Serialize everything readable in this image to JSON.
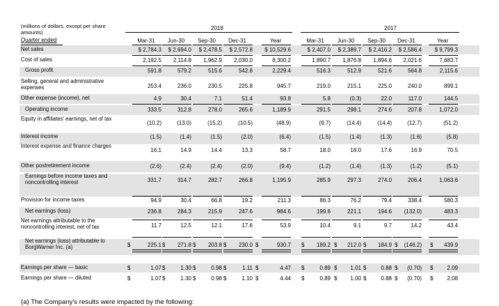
{
  "header": {
    "units_note": "(millions of dollars, except per share amounts)",
    "year_2018": "2018",
    "year_2017": "2017",
    "quarter_ended": "Quarter ended",
    "columns": [
      "Mar-31",
      "Jun-30",
      "Sep-30",
      "Dec-31",
      "Year",
      "Mar-31",
      "Jun-30",
      "Sep-30",
      "Dec-31",
      "Year"
    ]
  },
  "rows": [
    {
      "label": "Net sales",
      "values": [
        "$ 2,784.3",
        "$ 2,694.0",
        "$ 2,478.5",
        "$ 2,572.8",
        "$ 10,529.6",
        "$ 2,407.0",
        "$ 2,389.7",
        "$ 2,416.2",
        "$ 2,586.4",
        "$ 9,799.3"
      ]
    },
    {
      "label": "Cost of sales",
      "values": [
        "2,192.5",
        "2,114.8",
        "1,962.9",
        "2,030.0",
        "8,300.2",
        "1,890.7",
        "1,876.8",
        "1,894.6",
        "2,021.6",
        "7,683.7"
      ]
    },
    {
      "label": "Gross profit",
      "values": [
        "591.8",
        "579.2",
        "515.6",
        "542.8",
        "2,229.4",
        "516.3",
        "512.9",
        "521.6",
        "564.8",
        "2,115.6"
      ]
    },
    {
      "label": "Selling, general and administrative expenses",
      "values": [
        "253.4",
        "236.0",
        "230.5",
        "225.8",
        "945.7",
        "219.0",
        "215.1",
        "225.0",
        "240.0",
        "899.1"
      ]
    },
    {
      "label": "Other expense (income), net",
      "values": [
        "4.9",
        "30.4",
        "7.1",
        "51.4",
        "93.8",
        "5.8",
        "(0.3)",
        "22.0",
        "117.0",
        "144.5"
      ]
    },
    {
      "label": "Operating income",
      "values": [
        "333.5",
        "312.8",
        "278.0",
        "265.6",
        "1,189.9",
        "291.5",
        "298.1",
        "274.6",
        "207.8",
        "1,072.0"
      ]
    },
    {
      "label": "Equity in affiliates' earnings, net of tax",
      "values": [
        "(10.2)",
        "(13.0)",
        "(15.2)",
        "(10.5)",
        "(48.9)",
        "(9.7)",
        "(14.4)",
        "(14.4)",
        "(12.7)",
        "(51.2)"
      ]
    },
    {
      "label": "Interest income",
      "values": [
        "(1.5)",
        "(1.4)",
        "(1.5)",
        "(2.0)",
        "(6.4)",
        "(1.5)",
        "(1.4)",
        "(1.3)",
        "(1.6)",
        "(5.8)"
      ]
    },
    {
      "label": "Interest expense and finance charges",
      "values": [
        "16.1",
        "14.9",
        "14.4",
        "13.3",
        "58.7",
        "18.0",
        "18.0",
        "17.6",
        "16.9",
        "70.5"
      ]
    },
    {
      "label": "Other postretirement income",
      "values": [
        "(2.6)",
        "(2.4)",
        "(2.4)",
        "(2.0)",
        "(9.4)",
        "(1.2)",
        "(1.4)",
        "(1.3)",
        "(1.2)",
        "(5.1)"
      ]
    },
    {
      "label": "Earnings before income taxes and noncontrolling interest",
      "values": [
        "331.7",
        "314.7",
        "282.7",
        "266.8",
        "1,195.9",
        "285.9",
        "297.3",
        "274.0",
        "206.4",
        "1,063.6"
      ]
    },
    {
      "label": "Provision for income taxes",
      "values": [
        "94.9",
        "30.4",
        "66.8",
        "19.2",
        "211.3",
        "86.3",
        "76.2",
        "79.4",
        "338.4",
        "580.3"
      ]
    },
    {
      "label": "Net earnings (loss)",
      "values": [
        "236.8",
        "284.3",
        "215.9",
        "247.6",
        "984.6",
        "199.6",
        "221.1",
        "194.6",
        "(132.0)",
        "483.3"
      ]
    },
    {
      "label": "Net earnings attributable to the noncontrolling interest, net of tax",
      "values": [
        "11.7",
        "12.5",
        "12.1",
        "17.6",
        "53.9",
        "10.4",
        "9.1",
        "9.7",
        "14.2",
        "43.4"
      ]
    },
    {
      "label": "Net earnings (loss) attributable to BorgWarner Inc. (a)",
      "values": [
        "225.1",
        "271.8",
        "203.8",
        "230.0",
        "930.7",
        "189.2",
        "212.0",
        "184.9",
        "(146.2)",
        "439.9"
      ]
    },
    {
      "label": "Earnings per share — basic",
      "values": [
        "1.07",
        "1.30",
        "0.98",
        "1.11",
        "4.47",
        "0.89",
        "1.01",
        "0.88",
        "(0.70)",
        "2.09"
      ]
    },
    {
      "label": "Earnings per share — diluted",
      "values": [
        "1.07",
        "1.30",
        "0.98",
        "1.10",
        "4.44",
        "0.89",
        "1.00",
        "0.88",
        "(0.70)",
        "2.08"
      ]
    }
  ],
  "currency_symbol": "$",
  "footnote": "(a)   The Company's results were impacted by the following:"
}
